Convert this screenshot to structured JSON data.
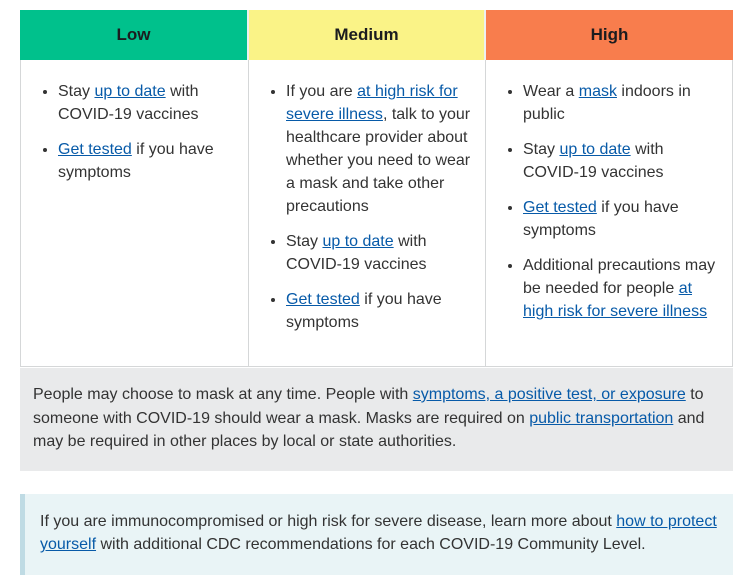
{
  "colors": {
    "low_header_bg": "#00c18c",
    "medium_header_bg": "#faf387",
    "high_header_bg": "#f87d4d",
    "link_color": "#075aa8",
    "mask_note_bg": "#e9eaeb",
    "immuno_note_bg": "#e9f4f6",
    "immuno_note_border": "#bfdbe4"
  },
  "columns": [
    {
      "level": "Low",
      "header_bg": "#00c18c",
      "bullets": [
        [
          {
            "t": "Stay "
          },
          {
            "t": "up to date",
            "link": true
          },
          {
            "t": " with COVID-19 vaccines"
          }
        ],
        [
          {
            "t": "Get tested",
            "link": true
          },
          {
            "t": " if you have symptoms"
          }
        ]
      ]
    },
    {
      "level": "Medium",
      "header_bg": "#faf387",
      "bullets": [
        [
          {
            "t": "If you are "
          },
          {
            "t": "at high risk for severe illness",
            "link": true
          },
          {
            "t": ", talk to your healthcare provider about whether you need to wear a mask and take other precautions"
          }
        ],
        [
          {
            "t": "Stay "
          },
          {
            "t": "up to date",
            "link": true
          },
          {
            "t": " with COVID-19 vaccines"
          }
        ],
        [
          {
            "t": "Get tested",
            "link": true
          },
          {
            "t": " if you have symptoms"
          }
        ]
      ]
    },
    {
      "level": "High",
      "header_bg": "#f87d4d",
      "bullets": [
        [
          {
            "t": "Wear a "
          },
          {
            "t": "mask",
            "link": true
          },
          {
            "t": " indoors in public"
          }
        ],
        [
          {
            "t": "Stay "
          },
          {
            "t": "up to date",
            "link": true
          },
          {
            "t": " with COVID-19 vaccines"
          }
        ],
        [
          {
            "t": "Get tested",
            "link": true
          },
          {
            "t": " if you have symptoms"
          }
        ],
        [
          {
            "t": "Additional precautions may be needed for people "
          },
          {
            "t": "at high risk for severe illness",
            "link": true
          }
        ]
      ]
    }
  ],
  "mask_note": [
    {
      "t": "People may choose to mask at any time. People with "
    },
    {
      "t": "symptoms, a positive test, or exposure",
      "link": true
    },
    {
      "t": " to someone with COVID-19 should wear a mask. Masks are required on "
    },
    {
      "t": "public transportation",
      "link": true
    },
    {
      "t": " and may be required in other places by local or state authorities."
    }
  ],
  "immuno_note": [
    {
      "t": "If you are immunocompromised or high risk for severe disease, learn more about "
    },
    {
      "t": "how to protect yourself",
      "link": true
    },
    {
      "t": " with additional CDC recommendations for each COVID-19 Community Level."
    }
  ]
}
